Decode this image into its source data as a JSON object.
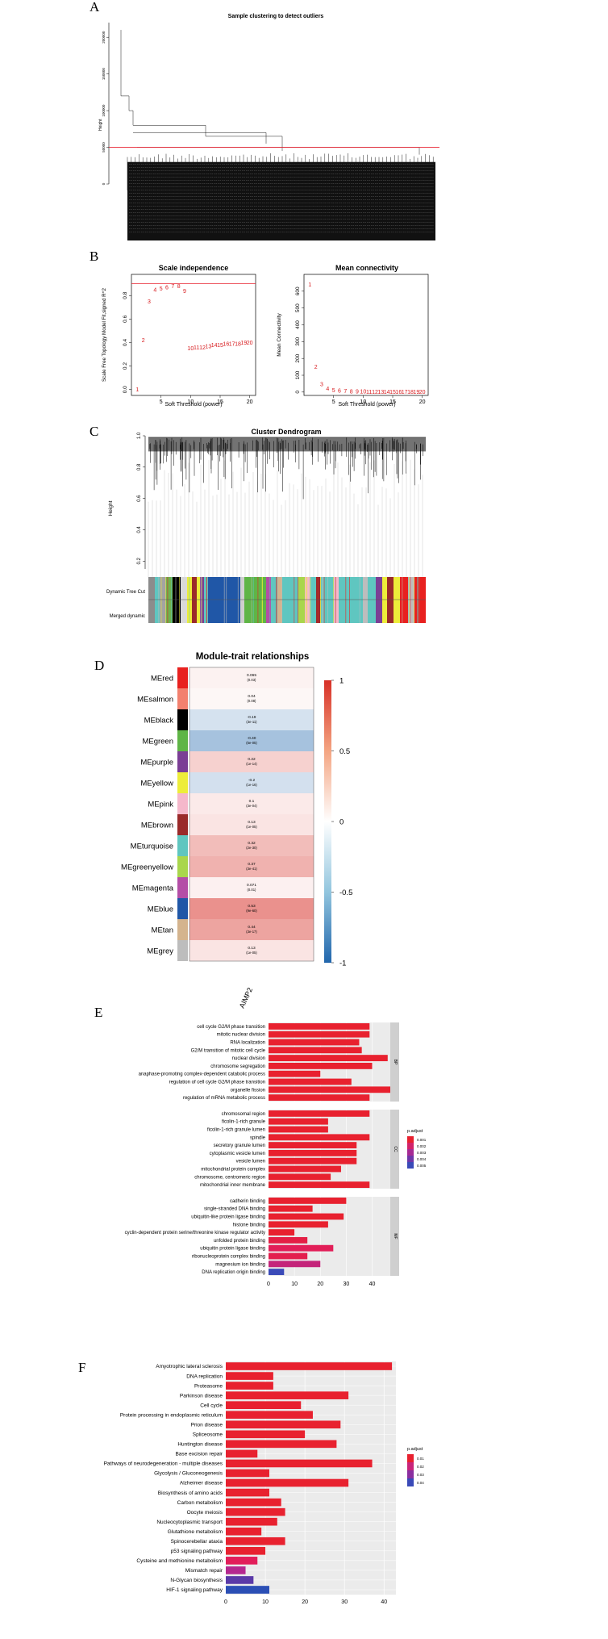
{
  "panel_labels": [
    "A",
    "B",
    "C",
    "D",
    "E",
    "F"
  ],
  "chart_data": [
    {
      "panel": "A",
      "type": "dendrogram",
      "title": "Sample clustering to detect outliers",
      "ylabel": "Height",
      "yticks": [
        "0",
        "50000",
        "100000",
        "150000",
        "200000"
      ],
      "ylim": [
        0,
        220000
      ],
      "cut_height": 50000
    },
    {
      "panel": "B1",
      "type": "scatter",
      "title": "Scale independence",
      "xlabel": "Soft Threshold (power)",
      "ylabel": "Scale Free Topology Model Fit,signed R^2",
      "xticks": [
        "5",
        "10",
        "15",
        "20"
      ],
      "yticks": [
        "0.0",
        "0.2",
        "0.4",
        "0.6",
        "0.8"
      ],
      "xlim": [
        0,
        21
      ],
      "ylim": [
        -0.05,
        0.98
      ],
      "hline": 0.9,
      "x": [
        1,
        2,
        3,
        4,
        5,
        6,
        7,
        8,
        9,
        10,
        11,
        12,
        13,
        14,
        15,
        16,
        17,
        18,
        19,
        20
      ],
      "y": [
        0.0,
        0.42,
        0.75,
        0.85,
        0.86,
        0.87,
        0.88,
        0.88,
        0.84,
        0.35,
        0.36,
        0.36,
        0.37,
        0.38,
        0.38,
        0.39,
        0.39,
        0.39,
        0.4,
        0.4
      ]
    },
    {
      "panel": "B2",
      "type": "scatter",
      "title": "Mean connectivity",
      "xlabel": "Soft Threshold (power)",
      "ylabel": "Mean Connectivity",
      "xticks": [
        "5",
        "10",
        "15",
        "20"
      ],
      "yticks": [
        "0",
        "100",
        "200",
        "300",
        "400",
        "500",
        "600"
      ],
      "xlim": [
        0,
        21
      ],
      "ylim": [
        -20,
        700
      ],
      "x": [
        1,
        2,
        3,
        4,
        5,
        6,
        7,
        8,
        9,
        10,
        11,
        12,
        13,
        14,
        15,
        16,
        17,
        18,
        19,
        20
      ],
      "y": [
        640,
        150,
        48,
        22,
        12,
        8,
        6,
        4,
        3,
        3,
        2,
        2,
        2,
        2,
        2,
        2,
        2,
        2,
        2,
        2
      ]
    },
    {
      "panel": "C",
      "type": "dendrogram",
      "title": "Cluster Dendrogram",
      "ylabel": "Height",
      "yticks": [
        "0.2",
        "0.4",
        "0.6",
        "0.8",
        "1.0"
      ],
      "ylim": [
        0.15,
        1.0
      ],
      "row_labels": [
        "Dynamic Tree Cut",
        "Merged dynamic"
      ]
    },
    {
      "panel": "D",
      "type": "heatmap",
      "title": "Module-trait relationships",
      "xlabel": "AIMP2",
      "colorbar_ticks": [
        "1",
        "0.5",
        "0",
        "-0.5",
        "-1"
      ],
      "rows": [
        {
          "module": "MEred",
          "color": "#e8211f",
          "corr": "0.065",
          "p": "(0.03)",
          "value": 0.065
        },
        {
          "module": "MEsalmon",
          "color": "#f2816f",
          "corr": "0.04",
          "p": "(0.08)",
          "value": 0.04
        },
        {
          "module": "MEblack",
          "color": "#000000",
          "corr": "-0.19",
          "p": "(3e-11)",
          "value": -0.19
        },
        {
          "module": "MEgreen",
          "color": "#5fb546",
          "corr": "-0.40",
          "p": "(5e-05)",
          "value": -0.4
        },
        {
          "module": "MEpurple",
          "color": "#7b3e95",
          "corr": "0.22",
          "p": "(1e-14)",
          "value": 0.22
        },
        {
          "module": "MEyellow",
          "color": "#eded3a",
          "corr": "-0.2",
          "p": "(1e-16)",
          "value": -0.2
        },
        {
          "module": "MEpink",
          "color": "#f5b8cb",
          "corr": "0.1",
          "p": "(3e-04)",
          "value": 0.1
        },
        {
          "module": "MEbrown",
          "color": "#9a2a2a",
          "corr": "0.13",
          "p": "(1e-05)",
          "value": 0.13
        },
        {
          "module": "MEturquoise",
          "color": "#5fc6c0",
          "corr": "0.32",
          "p": "(2e-30)",
          "value": 0.32
        },
        {
          "module": "MEgreenyellow",
          "color": "#a9d64c",
          "corr": "0.37",
          "p": "(3e-41)",
          "value": 0.37
        },
        {
          "module": "MEmagenta",
          "color": "#b44ea7",
          "corr": "0.071",
          "p": "(0.01)",
          "value": 0.071
        },
        {
          "module": "MEblue",
          "color": "#2057a7",
          "corr": "0.53",
          "p": "(9e-60)",
          "value": 0.53
        },
        {
          "module": "MEtan",
          "color": "#d4b48e",
          "corr": "0.44",
          "p": "(3e-17)",
          "value": 0.44
        },
        {
          "module": "MEgrey",
          "color": "#bdbdbd",
          "corr": "0.13",
          "p": "(1e-05)",
          "value": 0.13
        }
      ]
    },
    {
      "panel": "E",
      "type": "bar",
      "orientation": "horizontal",
      "xticks": [
        "0",
        "10",
        "20",
        "30",
        "40"
      ],
      "xlim": [
        0,
        47
      ],
      "legend_title": "p.adjust",
      "legend_ticks": [
        "0.001",
        "0.002",
        "0.003",
        "0.004",
        "0.005"
      ],
      "groups": [
        {
          "name": "BP",
          "categories": [
            "cell cycle G2/M phase transition",
            "mitotic nuclear division",
            "RNA localization",
            "G2/M transition of mitotic cell cycle",
            "nuclear division",
            "chromosome segregation",
            "anaphase-promoting complex-dependent catabolic process",
            "regulation of cell cycle G2/M phase transition",
            "organelle fission",
            "regulation of mRNA metabolic process"
          ],
          "values": [
            39,
            39,
            35,
            36,
            46,
            40,
            20,
            32,
            47,
            39
          ],
          "colors": [
            "#e8212f",
            "#e8212f",
            "#e8212f",
            "#e8212f",
            "#e8212f",
            "#e8212f",
            "#e8212f",
            "#e8212f",
            "#e8212f",
            "#e8212f"
          ]
        },
        {
          "name": "CC",
          "categories": [
            "chromosomal region",
            "ficolin-1-rich granule",
            "ficolin-1-rich granule lumen",
            "spindle",
            "secretory granule lumen",
            "cytoplasmic vesicle lumen",
            "vesicle lumen",
            "mitochondrial protein complex",
            "chromosome, centromeric region",
            "mitochondrial inner membrane"
          ],
          "values": [
            39,
            23,
            23,
            39,
            34,
            34,
            34,
            28,
            24,
            39
          ],
          "colors": [
            "#e8212f",
            "#e8212f",
            "#e8212f",
            "#e8212f",
            "#e8212f",
            "#e8212f",
            "#e8212f",
            "#e8212f",
            "#e8212f",
            "#e8212f"
          ]
        },
        {
          "name": "MF",
          "categories": [
            "cadherin binding",
            "single-stranded DNA binding",
            "ubiquitin-like protein ligase binding",
            "histone binding",
            "cyclin-dependent protein serine/threonine kinase regulator activity",
            "unfolded protein binding",
            "ubiquitin protein ligase binding",
            "ribonucleoprotein complex binding",
            "magnesium ion binding",
            "DNA replication origin binding"
          ],
          "values": [
            30,
            17,
            29,
            23,
            10,
            15,
            25,
            15,
            20,
            6
          ],
          "colors": [
            "#e8212f",
            "#e8212f",
            "#e8212f",
            "#e8212f",
            "#e8212f",
            "#e41f45",
            "#e21e58",
            "#e31f4e",
            "#c4247a",
            "#3a4ab8"
          ]
        }
      ]
    },
    {
      "panel": "F",
      "type": "bar",
      "orientation": "horizontal",
      "xticks": [
        "0",
        "10",
        "20",
        "30",
        "40"
      ],
      "xlim": [
        0,
        43
      ],
      "legend_title": "p.adjust",
      "legend_ticks": [
        "0.01",
        "0.02",
        "0.03",
        "0.04"
      ],
      "categories": [
        "Amyotrophic lateral sclerosis",
        "DNA replication",
        "Proteasome",
        "Parkinson disease",
        "Cell cycle",
        "Protein processing in endoplasmic reticulum",
        "Prion disease",
        "Spliceosome",
        "Huntington disease",
        "Base excision repair",
        "Pathways of neurodegeneration - multiple diseases",
        "Glycolysis / Gluconeogenesis",
        "Alzheimer disease",
        "Biosynthesis of amino acids",
        "Carbon metabolism",
        "Oocyte meiosis",
        "Nucleocytoplasmic transport",
        "Glutathione metabolism",
        "Spinocerebellar ataxia",
        "p53 signaling pathway",
        "Cysteine and methionine metabolism",
        "Mismatch repair",
        "N-Glycan biosynthesis",
        "HIF-1 signaling pathway"
      ],
      "values": [
        42,
        12,
        12,
        31,
        19,
        22,
        29,
        20,
        28,
        8,
        37,
        11,
        31,
        11,
        14,
        15,
        13,
        9,
        15,
        10,
        8,
        5,
        7,
        11
      ],
      "colors": [
        "#e8212f",
        "#e8212f",
        "#e8212f",
        "#e8212f",
        "#e8212f",
        "#e8212f",
        "#e8212f",
        "#e8212f",
        "#e8212f",
        "#e8212f",
        "#e8212f",
        "#e8212f",
        "#e8212f",
        "#e8212f",
        "#e8212f",
        "#e8212f",
        "#e8212f",
        "#e8212f",
        "#e8212f",
        "#e8212f",
        "#e21e5a",
        "#b5288f",
        "#5a3aa8",
        "#2b4fb5"
      ]
    }
  ]
}
